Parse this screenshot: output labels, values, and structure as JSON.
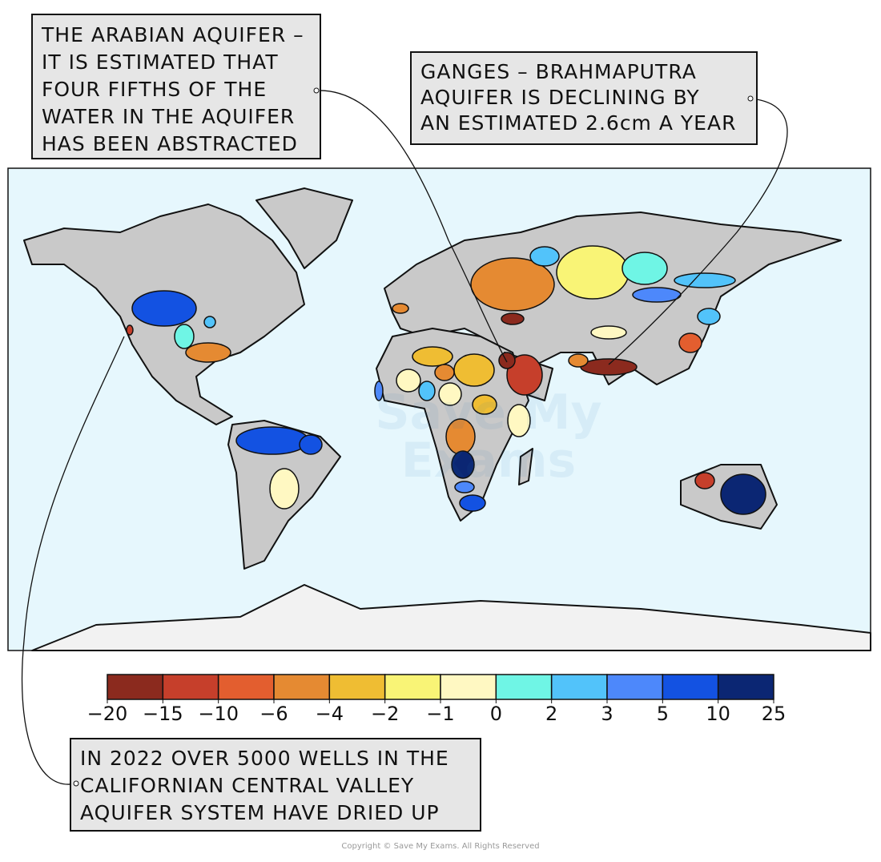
{
  "callouts": [
    {
      "lines": [
        "THE ARABIAN AQUIFER –",
        "IT IS ESTIMATED THAT",
        "FOUR FIFTHS OF THE",
        "WATER IN THE AQUIFER",
        "HAS BEEN ABSTRACTED"
      ]
    },
    {
      "lines": [
        "GANGES – BRAHMAPUTRA",
        "AQUIFER IS DECLINING BY",
        "AN ESTIMATED 2.6cm A YEAR"
      ]
    },
    {
      "lines": [
        "IN 2022 OVER 5000 WELLS IN THE",
        "CALIFORNIAN CENTRAL VALLEY",
        "AQUIFER SYSTEM HAVE DRIED UP"
      ]
    }
  ],
  "legend": {
    "ticks": [
      {
        "value": -20,
        "label": "−20"
      },
      {
        "value": -15,
        "label": "−15"
      },
      {
        "value": -10,
        "label": "−10"
      },
      {
        "value": -6,
        "label": "−6"
      },
      {
        "value": -4,
        "label": "−4"
      },
      {
        "value": -2,
        "label": "−2"
      },
      {
        "value": -1,
        "label": "−1"
      },
      0,
      2,
      3,
      5,
      10,
      25
    ],
    "colors": [
      "#8b2a1e",
      "#c63f2b",
      "#e35e2f",
      "#e58a32",
      "#efbd33",
      "#f9f476",
      "#fff8c2",
      "#6ff5e5",
      "#52c3fa",
      "#4d88fb",
      "#1352e2",
      "#0b2673"
    ]
  },
  "watermark": [
    "Save My",
    "Exams"
  ],
  "copyright": "Copyright © Save My Exams. All Rights Reserved"
}
